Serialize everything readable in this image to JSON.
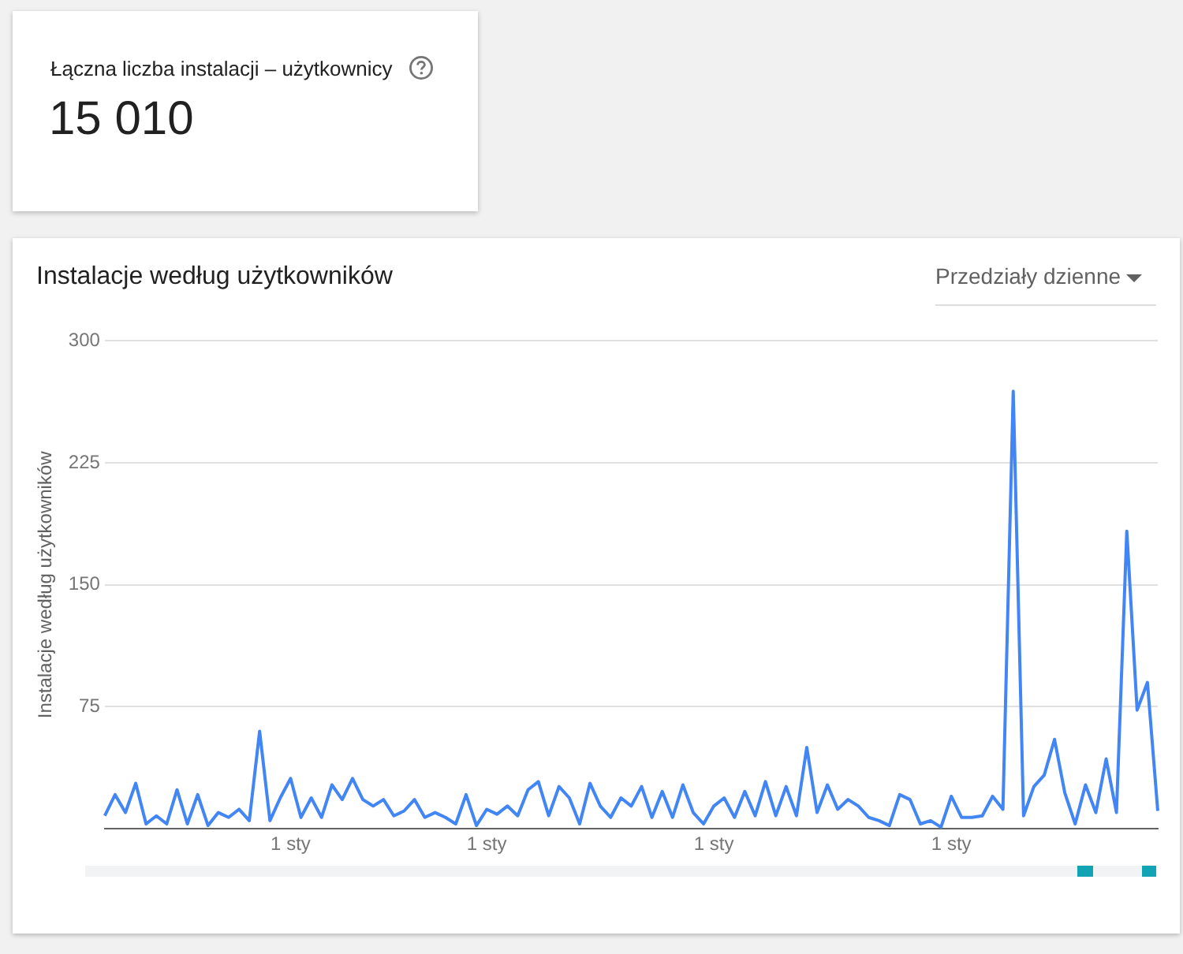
{
  "chart_data": {
    "type": "line",
    "title": "Instalacje według użytkowników",
    "ylabel": "Instalacje według użytkowników",
    "annotations": [
      "Łączna liczba instalacji – użytkownicy",
      "15 010",
      "Przedziały dzienne"
    ],
    "categories": [
      null,
      null,
      null,
      null,
      null,
      null,
      null,
      null,
      null,
      null,
      null,
      null,
      null,
      null,
      null,
      null,
      null,
      null,
      "1 sty",
      null,
      null,
      null,
      null,
      null,
      null,
      null,
      null,
      null,
      null,
      null,
      null,
      null,
      null,
      null,
      null,
      null,
      null,
      "1 sty",
      null,
      null,
      null,
      null,
      null,
      null,
      null,
      null,
      null,
      null,
      null,
      null,
      null,
      null,
      null,
      null,
      null,
      null,
      null,
      null,
      null,
      "1 sty",
      null,
      null,
      null,
      null,
      null,
      null,
      null,
      null,
      null,
      null,
      null,
      null,
      null,
      null,
      null,
      null,
      null,
      null,
      null,
      null,
      null,
      null,
      "1 sty",
      null,
      null,
      null,
      null,
      null,
      null,
      null,
      null,
      null,
      null,
      null,
      null,
      null,
      null,
      null,
      null,
      null,
      null,
      null,
      null
    ],
    "series": [
      {
        "color": "#4285f4",
        "values": [
          8,
          21,
          10,
          28,
          3,
          8,
          3,
          24,
          3,
          21,
          2,
          10,
          7,
          12,
          5,
          60,
          5,
          19,
          31,
          7,
          19,
          7,
          27,
          18,
          31,
          18,
          14,
          18,
          8,
          11,
          18,
          7,
          10,
          7,
          3,
          21,
          2,
          12,
          9,
          14,
          8,
          24,
          29,
          8,
          26,
          19,
          3,
          28,
          14,
          7,
          19,
          14,
          26,
          7,
          23,
          7,
          27,
          10,
          3,
          14,
          19,
          7,
          23,
          8,
          29,
          8,
          26,
          8,
          50,
          10,
          27,
          12,
          18,
          14,
          7,
          5,
          2,
          21,
          18,
          3,
          5,
          1,
          20,
          7,
          7,
          8,
          20,
          12,
          269,
          8,
          26,
          33,
          55,
          22,
          3,
          27,
          10,
          43,
          10,
          183,
          73,
          90,
          11
        ]
      }
    ],
    "ylim": [
      0,
      300
    ],
    "yticks": [
      75,
      150,
      225,
      300
    ],
    "grid": "y",
    "legend": false,
    "marker": "none",
    "line_style": "solid"
  }
}
